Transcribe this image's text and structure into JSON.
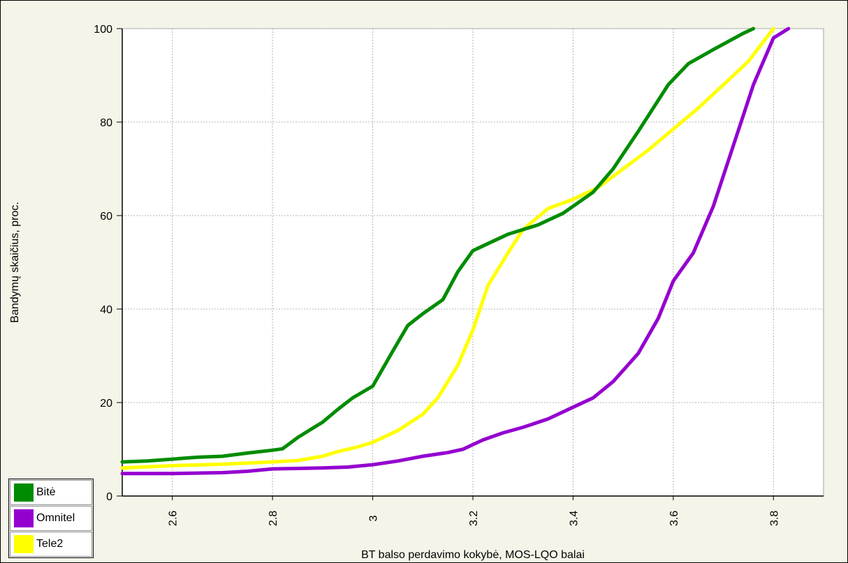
{
  "chart_data": {
    "type": "line",
    "title": "",
    "xlabel": "BT balso perdavimo kokybė, MOS-LQO balai",
    "ylabel": "Bandymų skaičius, proc.",
    "xlim": [
      2.5,
      3.9
    ],
    "ylim": [
      0,
      100
    ],
    "x_ticks": [
      2.6,
      2.8,
      3.0,
      3.2,
      3.4,
      3.6,
      3.8
    ],
    "x_tick_labels": [
      "2.6",
      "2.8",
      "3",
      "3.2",
      "3.4",
      "3.6",
      "3.8"
    ],
    "y_ticks": [
      20,
      40,
      60,
      80,
      100
    ],
    "y_tick_labels": [
      "20",
      "40",
      "60",
      "80",
      "100"
    ],
    "y_zero_label": "0",
    "grid": true,
    "legend_position": "bottom-left",
    "series": [
      {
        "name": "Bitė",
        "color": "#008c00",
        "points": [
          [
            2.5,
            7.3
          ],
          [
            2.55,
            7.5
          ],
          [
            2.6,
            7.9
          ],
          [
            2.65,
            8.3
          ],
          [
            2.7,
            8.5
          ],
          [
            2.75,
            9.2
          ],
          [
            2.8,
            9.8
          ],
          [
            2.82,
            10.1
          ],
          [
            2.85,
            12.5
          ],
          [
            2.88,
            14.5
          ],
          [
            2.9,
            15.8
          ],
          [
            2.93,
            18.5
          ],
          [
            2.96,
            21.0
          ],
          [
            3.0,
            23.5
          ],
          [
            3.04,
            31.0
          ],
          [
            3.07,
            36.5
          ],
          [
            3.1,
            39.0
          ],
          [
            3.14,
            42.0
          ],
          [
            3.17,
            48.0
          ],
          [
            3.2,
            52.5
          ],
          [
            3.23,
            54.0
          ],
          [
            3.27,
            56.0
          ],
          [
            3.33,
            58.0
          ],
          [
            3.38,
            60.5
          ],
          [
            3.44,
            65.0
          ],
          [
            3.48,
            70.0
          ],
          [
            3.53,
            78.0
          ],
          [
            3.59,
            88.0
          ],
          [
            3.63,
            92.5
          ],
          [
            3.68,
            95.5
          ],
          [
            3.74,
            99.0
          ],
          [
            3.76,
            100.0
          ]
        ]
      },
      {
        "name": "Omnitel",
        "color": "#9400d0",
        "points": [
          [
            2.5,
            4.8
          ],
          [
            2.6,
            4.8
          ],
          [
            2.7,
            5.0
          ],
          [
            2.75,
            5.3
          ],
          [
            2.8,
            5.8
          ],
          [
            2.9,
            6.0
          ],
          [
            2.95,
            6.2
          ],
          [
            3.0,
            6.7
          ],
          [
            3.05,
            7.5
          ],
          [
            3.1,
            8.5
          ],
          [
            3.15,
            9.3
          ],
          [
            3.18,
            10.0
          ],
          [
            3.22,
            12.0
          ],
          [
            3.26,
            13.5
          ],
          [
            3.3,
            14.7
          ],
          [
            3.35,
            16.5
          ],
          [
            3.4,
            19.0
          ],
          [
            3.44,
            21.0
          ],
          [
            3.48,
            24.5
          ],
          [
            3.53,
            30.5
          ],
          [
            3.57,
            38.0
          ],
          [
            3.6,
            46.0
          ],
          [
            3.64,
            52.0
          ],
          [
            3.68,
            62.0
          ],
          [
            3.72,
            75.0
          ],
          [
            3.76,
            88.0
          ],
          [
            3.8,
            98.0
          ],
          [
            3.83,
            100.0
          ]
        ]
      },
      {
        "name": "Tele2",
        "color": "#ffff00",
        "points": [
          [
            2.5,
            6.0
          ],
          [
            2.6,
            6.5
          ],
          [
            2.7,
            6.8
          ],
          [
            2.8,
            7.3
          ],
          [
            2.85,
            7.6
          ],
          [
            2.9,
            8.5
          ],
          [
            2.93,
            9.5
          ],
          [
            2.97,
            10.5
          ],
          [
            3.0,
            11.5
          ],
          [
            3.05,
            14.0
          ],
          [
            3.1,
            17.5
          ],
          [
            3.13,
            21.0
          ],
          [
            3.17,
            28.0
          ],
          [
            3.2,
            35.5
          ],
          [
            3.23,
            45.0
          ],
          [
            3.27,
            52.0
          ],
          [
            3.3,
            57.0
          ],
          [
            3.35,
            61.5
          ],
          [
            3.4,
            63.5
          ],
          [
            3.45,
            66.0
          ],
          [
            3.5,
            70.0
          ],
          [
            3.55,
            74.0
          ],
          [
            3.6,
            78.5
          ],
          [
            3.65,
            83.0
          ],
          [
            3.7,
            88.0
          ],
          [
            3.75,
            93.0
          ],
          [
            3.8,
            100.0
          ]
        ]
      }
    ]
  }
}
